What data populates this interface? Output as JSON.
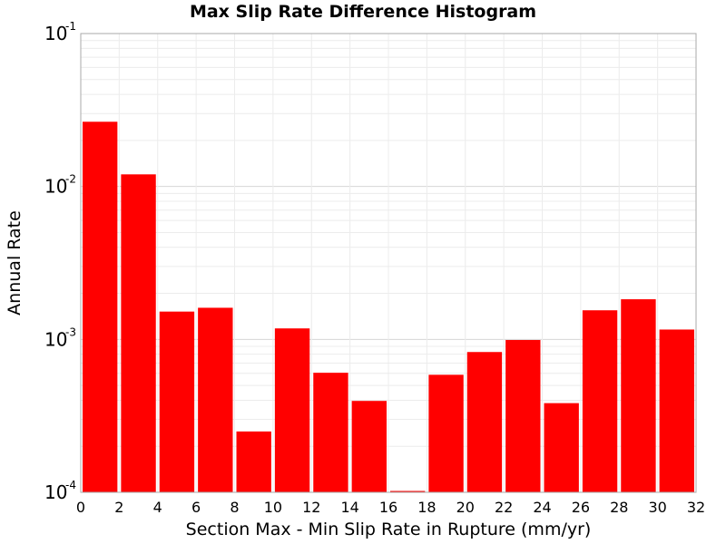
{
  "chart_data": {
    "type": "bar",
    "title": "Max Slip Rate Difference Histogram",
    "xlabel": "Section Max - Min Slip Rate in Rupture (mm/yr)",
    "ylabel": "Annual Rate",
    "yscale": "log",
    "ylim": [
      0.0001,
      0.1
    ],
    "xlim": [
      0,
      32
    ],
    "bin_width": 2,
    "x_ticks": [
      "0",
      "2",
      "4",
      "6",
      "8",
      "10",
      "12",
      "14",
      "16",
      "18",
      "20",
      "22",
      "24",
      "26",
      "28",
      "30",
      "32"
    ],
    "y_ticks": [
      {
        "value": 0.0001,
        "base": "10",
        "exp": "-4"
      },
      {
        "value": 0.001,
        "base": "10",
        "exp": "-3"
      },
      {
        "value": 0.01,
        "base": "10",
        "exp": "-2"
      },
      {
        "value": 0.1,
        "base": "10",
        "exp": "-1"
      }
    ],
    "bin_starts": [
      0,
      2,
      4,
      6,
      8,
      10,
      12,
      14,
      16,
      18,
      20,
      22,
      24,
      26,
      28,
      30
    ],
    "values": [
      0.0265,
      0.012,
      0.00152,
      0.00161,
      0.00025,
      0.00118,
      0.000605,
      0.000396,
      0.0001,
      0.000587,
      0.000827,
      0.000991,
      0.000383,
      0.00155,
      0.00183,
      0.00116
    ],
    "bar_color": "#ff0000",
    "grid": true,
    "legend": "none"
  }
}
